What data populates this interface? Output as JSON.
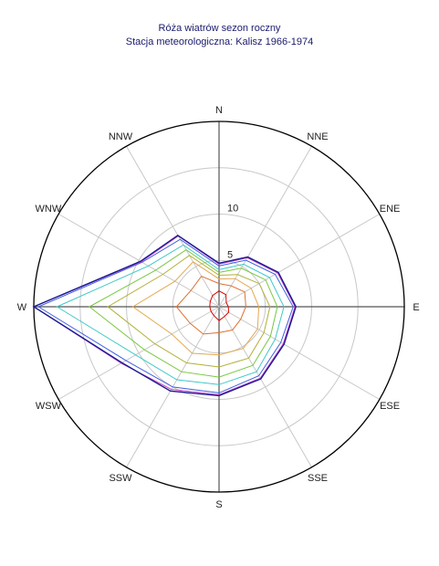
{
  "title": "Róża wiatrów sezon roczny",
  "subtitle": "Stacja meteorologiczna: Kalisz 1966-1974",
  "chart_data": {
    "type": "radar",
    "directions": [
      "N",
      "NNE",
      "ENE",
      "E",
      "ESE",
      "SSE",
      "S",
      "SSW",
      "WSW",
      "W",
      "WNW",
      "NNW"
    ],
    "radial_ticks": [
      5,
      10
    ],
    "rmax": 20,
    "grid": true,
    "series": [
      {
        "color": "#dd0000",
        "values": [
          1.7,
          1.5,
          0.9,
          1.0,
          1.2,
          1.2,
          1.5,
          1.1,
          1.0,
          1.0,
          1.1,
          1.4
        ]
      },
      {
        "color": "#e07030",
        "values": [
          2.5,
          2.6,
          3.2,
          2.9,
          2.7,
          2.9,
          2.8,
          3.4,
          3.6,
          4.6,
          3.5,
          3.8
        ]
      },
      {
        "color": "#e4a850",
        "values": [
          3.0,
          3.5,
          4.0,
          4.3,
          4.8,
          5.2,
          5.2,
          5.8,
          5.9,
          9.3,
          5.5,
          5.6
        ]
      },
      {
        "color": "#b0b038",
        "values": [
          3.4,
          4.0,
          5.0,
          5.5,
          5.6,
          6.4,
          6.5,
          7.0,
          8.0,
          12.0,
          7.0,
          6.4
        ]
      },
      {
        "color": "#78c840",
        "values": [
          3.7,
          4.8,
          5.8,
          6.3,
          6.4,
          7.3,
          7.6,
          8.1,
          9.3,
          14.0,
          7.9,
          7.1
        ]
      },
      {
        "color": "#40c8c8",
        "values": [
          4.0,
          5.3,
          6.3,
          7.0,
          7.0,
          8.1,
          8.4,
          9.1,
          10.4,
          17.5,
          8.8,
          7.7
        ]
      },
      {
        "color": "#4060e0",
        "values": [
          4.4,
          5.8,
          7.0,
          8.0,
          7.7,
          8.6,
          9.3,
          10.0,
          11.6,
          19.5,
          9.6,
          8.4
        ]
      },
      {
        "color": "#cc44cc",
        "values": [
          4.6,
          6.1,
          7.3,
          8.2,
          8.0,
          8.9,
          9.5,
          10.3,
          12.2,
          20.0,
          9.7,
          8.8
        ]
      },
      {
        "color": "#1a1a90",
        "values": [
          4.7,
          6.2,
          7.4,
          8.3,
          8.1,
          9.0,
          9.6,
          10.5,
          12.1,
          20.0,
          9.8,
          8.9
        ]
      }
    ]
  }
}
